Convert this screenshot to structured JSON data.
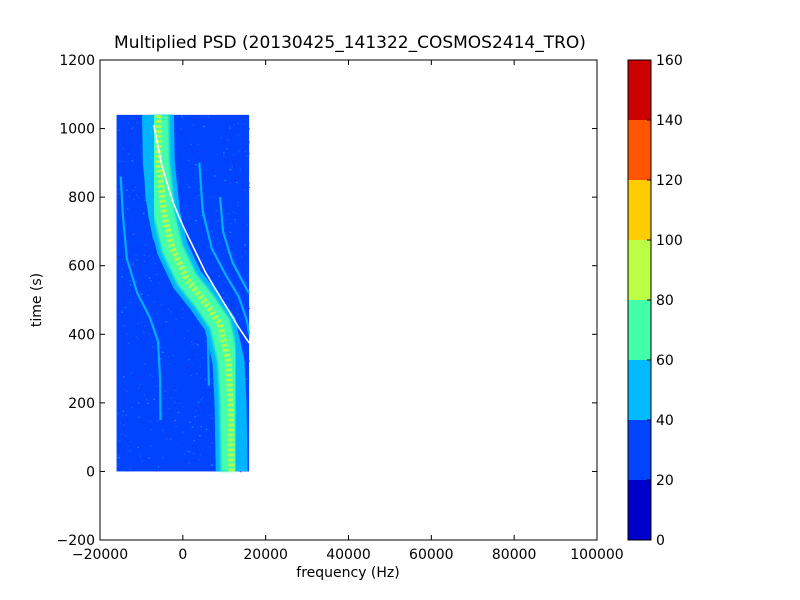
{
  "chart_data": {
    "type": "heatmap",
    "title": "Multiplied PSD (20130425_141322_COSMOS2414_TRO)",
    "xlabel": "frequency (Hz)",
    "ylabel": "time (s)",
    "xlim": [
      -20000,
      100000
    ],
    "ylim": [
      -200,
      1200
    ],
    "xticks": [
      -20000,
      0,
      20000,
      40000,
      60000,
      80000,
      100000
    ],
    "xtick_labels": [
      "−20000",
      "0",
      "20000",
      "40000",
      "60000",
      "80000",
      "100000"
    ],
    "yticks": [
      -200,
      0,
      200,
      400,
      600,
      800,
      1000,
      1200
    ],
    "ytick_labels": [
      "−200",
      "0",
      "200",
      "400",
      "600",
      "800",
      "1000",
      "1200"
    ],
    "grid": false,
    "image_extent": {
      "x": [
        -16000,
        16000
      ],
      "y": [
        0,
        1040
      ]
    },
    "background_level": 30,
    "doppler_track": {
      "description": "bright band centre (level ~65-80)",
      "points": [
        [
          -6000,
          1040
        ],
        [
          -5800,
          900
        ],
        [
          -4500,
          750
        ],
        [
          -2500,
          650
        ],
        [
          1000,
          560
        ],
        [
          5000,
          500
        ],
        [
          9000,
          430
        ],
        [
          11000,
          320
        ],
        [
          11500,
          200
        ],
        [
          11800,
          0
        ]
      ],
      "level": 72,
      "width_hz": 3500
    },
    "secondary_tracks": [
      {
        "points": [
          [
            -15000,
            860
          ],
          [
            -14500,
            750
          ],
          [
            -13500,
            620
          ],
          [
            -11000,
            520
          ],
          [
            -8000,
            450
          ],
          [
            -6000,
            380
          ],
          [
            -5500,
            270
          ],
          [
            -5400,
            150
          ]
        ],
        "level": 50
      },
      {
        "points": [
          [
            -9500,
            1000
          ],
          [
            -8800,
            800
          ],
          [
            -7000,
            680
          ],
          [
            -3500,
            600
          ],
          [
            1500,
            540
          ],
          [
            4500,
            500
          ],
          [
            6000,
            420
          ],
          [
            6300,
            250
          ]
        ],
        "level": 48
      },
      {
        "points": [
          [
            4000,
            900
          ],
          [
            4800,
            760
          ],
          [
            7000,
            650
          ],
          [
            10500,
            570
          ],
          [
            13500,
            510
          ],
          [
            15500,
            440
          ],
          [
            16000,
            400
          ]
        ],
        "level": 46
      },
      {
        "points": [
          [
            9000,
            800
          ],
          [
            9700,
            700
          ],
          [
            12000,
            610
          ],
          [
            15500,
            530
          ],
          [
            16000,
            520
          ]
        ],
        "level": 44
      }
    ],
    "overlay_curve": {
      "color": "#ffffff",
      "points": [
        [
          -7000,
          1010
        ],
        [
          -6200,
          960
        ],
        [
          -5200,
          900
        ],
        [
          -3800,
          840
        ],
        [
          -2200,
          780
        ],
        [
          -500,
          730
        ],
        [
          1500,
          680
        ],
        [
          3500,
          630
        ],
        [
          5500,
          580
        ],
        [
          7500,
          540
        ],
        [
          9500,
          500
        ],
        [
          11500,
          460
        ],
        [
          13500,
          420
        ],
        [
          16000,
          375
        ]
      ]
    },
    "colorbar": {
      "levels": [
        0,
        20,
        40,
        60,
        80,
        100,
        120,
        140,
        160
      ],
      "tick_labels": [
        "0",
        "20",
        "40",
        "60",
        "80",
        "100",
        "120",
        "140",
        "160"
      ],
      "colors": [
        "#0000cc",
        "#0044ff",
        "#00bbff",
        "#44ffaa",
        "#bbff44",
        "#ffcc00",
        "#ff5500",
        "#cc0000"
      ]
    }
  }
}
